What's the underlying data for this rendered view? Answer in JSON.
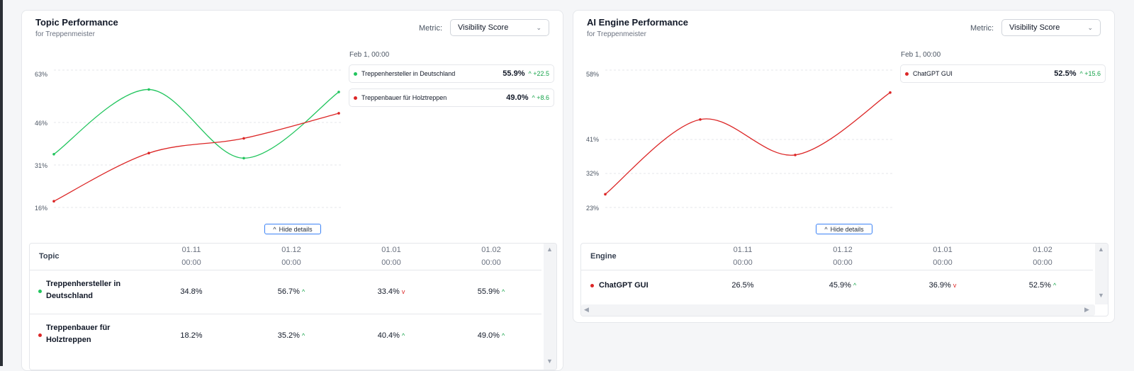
{
  "topic_card": {
    "title": "Topic Performance",
    "subtitle": "for Treppenmeister",
    "metric_label": "Metric:",
    "metric_value": "Visibility Score",
    "tooltip_time": "Feb 1, 00:00",
    "tooltip_items": [
      {
        "name": "Treppenhersteller in Deutschland",
        "value": "55.9%",
        "delta": "+22.5",
        "color": "#22c55e"
      },
      {
        "name": "Treppenbauer für Holztreppen",
        "value": "49.0%",
        "delta": "+8.6",
        "color": "#dc2626"
      }
    ],
    "hide_details": "Hide details",
    "table": {
      "header": "Topic",
      "dates": [
        {
          "day": "01.11",
          "time": "00:00"
        },
        {
          "day": "01.12",
          "time": "00:00"
        },
        {
          "day": "01.01",
          "time": "00:00"
        },
        {
          "day": "01.02",
          "time": "00:00"
        }
      ],
      "rows": [
        {
          "name_line1": "Treppenhersteller in",
          "name_line2": "Deutschland",
          "color": "#22c55e",
          "cells": [
            {
              "v": "34.8%",
              "t": ""
            },
            {
              "v": "56.7%",
              "t": "up"
            },
            {
              "v": "33.4%",
              "t": "down"
            },
            {
              "v": "55.9%",
              "t": "up"
            }
          ]
        },
        {
          "name_line1": "Treppenbauer für",
          "name_line2": "Holztreppen",
          "color": "#dc2626",
          "cells": [
            {
              "v": "18.2%",
              "t": ""
            },
            {
              "v": "35.2%",
              "t": "up"
            },
            {
              "v": "40.4%",
              "t": "up"
            },
            {
              "v": "49.0%",
              "t": "up"
            }
          ]
        }
      ]
    },
    "chart_data": {
      "type": "line",
      "x": [
        "01.11 00:00",
        "01.12 00:00",
        "01.01 00:00",
        "01.02 00:00"
      ],
      "yticks": [
        "63%",
        "46%",
        "31%",
        "16%"
      ],
      "ylim": [
        16,
        63
      ],
      "series": [
        {
          "name": "Treppenhersteller in Deutschland",
          "color": "#22c55e",
          "values": [
            34.8,
            56.7,
            33.4,
            55.9
          ]
        },
        {
          "name": "Treppenbauer für Holztreppen",
          "color": "#dc2626",
          "values": [
            18.2,
            35.2,
            40.4,
            49.0
          ]
        }
      ]
    }
  },
  "engine_card": {
    "title": "AI Engine Performance",
    "subtitle": "for Treppenmeister",
    "metric_label": "Metric:",
    "metric_value": "Visibility Score",
    "tooltip_time": "Feb 1, 00:00",
    "tooltip_items": [
      {
        "name": "ChatGPT GUI",
        "value": "52.5%",
        "delta": "+15.6",
        "color": "#dc2626"
      }
    ],
    "hide_details": "Hide details",
    "table": {
      "header": "Engine",
      "dates": [
        {
          "day": "01.11",
          "time": "00:00"
        },
        {
          "day": "01.12",
          "time": "00:00"
        },
        {
          "day": "01.01",
          "time": "00:00"
        },
        {
          "day": "01.02",
          "time": "00:00"
        }
      ],
      "rows": [
        {
          "name": "ChatGPT GUI",
          "color": "#dc2626",
          "cells": [
            {
              "v": "26.5%",
              "t": ""
            },
            {
              "v": "45.9%",
              "t": "up"
            },
            {
              "v": "36.9%",
              "t": "down"
            },
            {
              "v": "52.5%",
              "t": "up"
            }
          ]
        }
      ]
    },
    "chart_data": {
      "type": "line",
      "x": [
        "01.11 00:00",
        "01.12 00:00",
        "01.01 00:00",
        "01.02 00:00"
      ],
      "yticks": [
        "58%",
        "41%",
        "32%",
        "23%"
      ],
      "ylim": [
        23,
        58
      ],
      "series": [
        {
          "name": "ChatGPT GUI",
          "color": "#dc2626",
          "values": [
            26.5,
            45.9,
            36.9,
            52.5
          ]
        }
      ]
    }
  },
  "icons": {
    "chevron": "▾",
    "caret_up": "⌃",
    "arrow_up": "^",
    "arrow_down": "v"
  }
}
